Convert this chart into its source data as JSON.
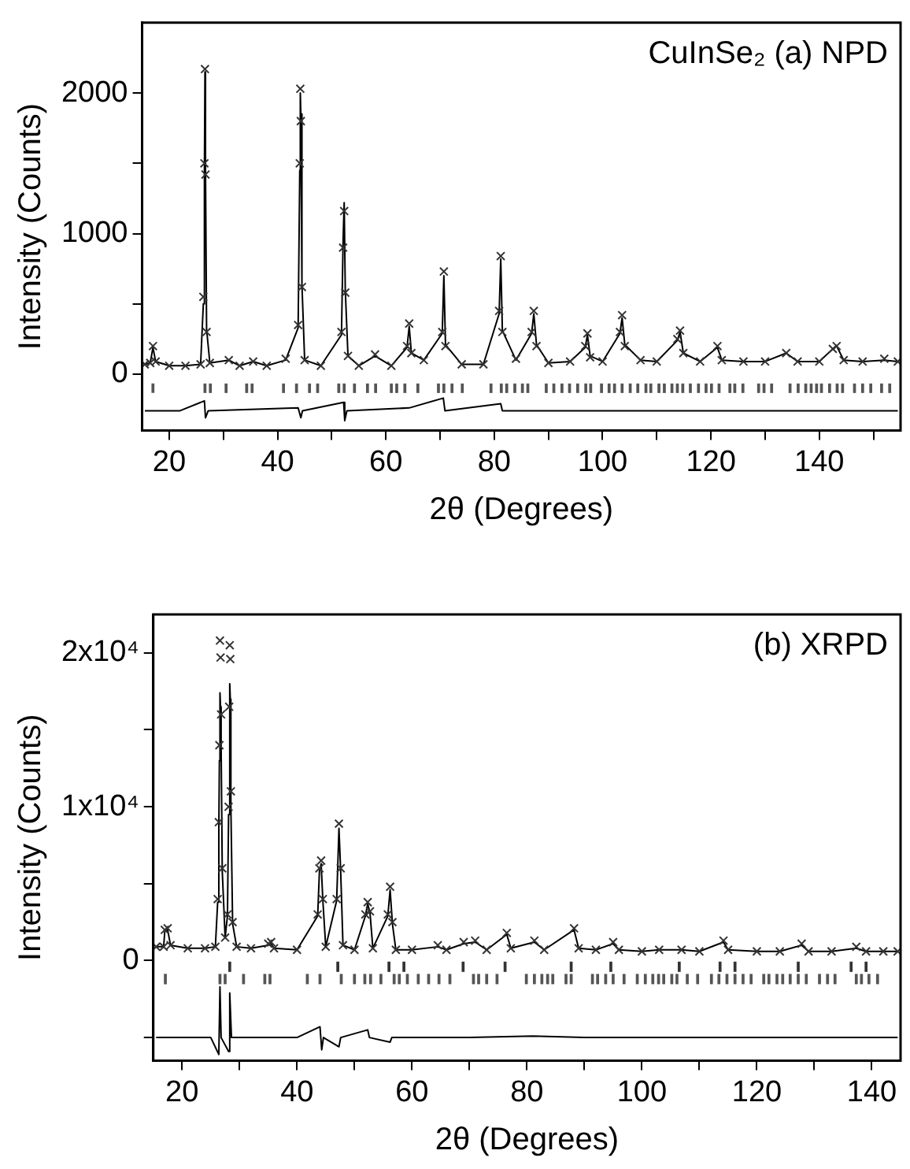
{
  "chart_data": [
    {
      "type": "line",
      "xlabel": "2θ (Degrees)",
      "ylabel": "Intensity (Counts)",
      "annotations": [
        "CuInSe₂ (a) NPD"
      ],
      "xlim": [
        15,
        155
      ],
      "ylim": [
        -400,
        2500
      ],
      "xticks": [
        20,
        {
          "value": 30,
          "label": null
        },
        40,
        {
          "value": 50,
          "label": null
        },
        60,
        {
          "value": 70,
          "label": null
        },
        80,
        {
          "value": 90,
          "label": null
        },
        100,
        {
          "value": 110,
          "label": null
        },
        120,
        {
          "value": 130,
          "label": null
        },
        140,
        {
          "value": 150,
          "label": null
        }
      ],
      "yticks": [
        0,
        {
          "value": 500,
          "label": null
        },
        1000,
        {
          "value": 1500,
          "label": null
        },
        2000
      ],
      "series": [
        {
          "type": "scatter",
          "marker": "cross",
          "color": "#333333",
          "x": [
            15.5,
            16.5,
            17,
            17.5,
            20,
            23,
            25.8,
            26.3,
            26.5,
            26.6,
            26.7,
            26.9,
            27.5,
            31,
            33,
            35.5,
            38,
            41.5,
            43.8,
            44.1,
            44.2,
            44.3,
            44.5,
            45,
            48,
            51.8,
            52.1,
            52.3,
            52.5,
            53,
            55,
            58,
            61,
            63.9,
            64.3,
            64.7,
            67,
            70.4,
            70.7,
            71,
            74,
            78,
            80.9,
            81.2,
            81.5,
            84,
            86.9,
            87.3,
            87.8,
            90,
            94,
            96.8,
            97.2,
            97.7,
            100,
            103.2,
            103.6,
            104.1,
            107,
            110,
            113.8,
            114.3,
            114.9,
            118,
            121.2,
            122,
            126,
            130,
            133.9,
            136,
            140,
            142.5,
            143.2,
            144.5,
            148,
            152,
            154.5
          ],
          "values": [
            70,
            80,
            200,
            90,
            60,
            60,
            70,
            550,
            1500,
            2170,
            1420,
            300,
            80,
            100,
            60,
            90,
            60,
            110,
            350,
            1500,
            2030,
            1800,
            620,
            100,
            60,
            300,
            900,
            1160,
            580,
            130,
            60,
            140,
            60,
            200,
            360,
            150,
            100,
            300,
            730,
            200,
            70,
            70,
            450,
            840,
            300,
            110,
            300,
            450,
            200,
            80,
            90,
            200,
            290,
            120,
            90,
            300,
            420,
            200,
            100,
            90,
            250,
            310,
            150,
            90,
            200,
            100,
            90,
            90,
            150,
            90,
            90,
            180,
            200,
            100,
            90,
            110,
            90
          ]
        },
        {
          "marker": "none",
          "color": "#000000",
          "x": [
            15.5,
            16.5,
            17,
            17.5,
            20,
            23,
            25.8,
            26.3,
            26.5,
            26.6,
            26.7,
            26.9,
            27.5,
            31,
            33,
            35.5,
            38,
            41.5,
            43.8,
            44.1,
            44.2,
            44.3,
            44.5,
            45,
            48,
            51.8,
            52.1,
            52.3,
            52.5,
            53,
            55,
            58,
            61,
            63.9,
            64.3,
            64.7,
            67,
            70.4,
            70.7,
            71,
            74,
            78,
            80.9,
            81.2,
            81.5,
            84,
            86.9,
            87.3,
            87.8,
            90,
            94,
            96.8,
            97.2,
            97.7,
            100,
            103.2,
            103.6,
            104.1,
            107,
            110,
            113.8,
            114.3,
            114.9,
            118,
            121.2,
            122,
            126,
            130,
            133.9,
            136,
            140,
            142.5,
            143.2,
            144.5,
            148,
            152,
            154.5
          ],
          "values": [
            70,
            80,
            190,
            90,
            60,
            60,
            70,
            500,
            1450,
            2150,
            1450,
            320,
            80,
            100,
            60,
            90,
            60,
            100,
            330,
            1450,
            2000,
            1850,
            640,
            100,
            60,
            280,
            950,
            1220,
            600,
            130,
            60,
            130,
            60,
            190,
            340,
            150,
            100,
            290,
            700,
            210,
            70,
            70,
            430,
            820,
            310,
            100,
            290,
            430,
            210,
            80,
            90,
            190,
            280,
            130,
            90,
            290,
            400,
            210,
            100,
            90,
            240,
            300,
            150,
            90,
            190,
            100,
            90,
            90,
            150,
            90,
            90,
            180,
            200,
            100,
            90,
            100,
            90
          ]
        },
        {
          "marker": "none",
          "color": "#000000",
          "x": [
            15.5,
            22,
            26.5,
            26.7,
            27.2,
            43.8,
            44.3,
            44.6,
            52.2,
            52.4,
            52.8,
            64.3,
            70.6,
            70.9,
            81.2,
            81.5,
            100,
            120,
            140,
            154.5
          ],
          "values": [
            -260,
            -260,
            -190,
            -310,
            -260,
            -240,
            -310,
            -260,
            -200,
            -330,
            -260,
            -240,
            -170,
            -260,
            -210,
            -260,
            -260,
            -260,
            -260,
            -260
          ]
        },
        {
          "type": "bar",
          "color": "#555555",
          "x": [
            17.0,
            26.6,
            27.6,
            30.5,
            34.3,
            35.3,
            41.1,
            43.5,
            45.9,
            47.4,
            51.3,
            52.3,
            54.2,
            56.6,
            58.1,
            61.0,
            62.0,
            63.5,
            65.9,
            69.7,
            70.7,
            72.2,
            74.1,
            79.4,
            81.3,
            82.3,
            83.8,
            85.2,
            86.2,
            89.6,
            91.0,
            92.5,
            93.9,
            95.4,
            96.9,
            97.8,
            99.8,
            101.2,
            102.2,
            103.6,
            105.1,
            106.5,
            108.0,
            108.9,
            110.4,
            111.4,
            112.8,
            113.8,
            114.8,
            116.2,
            117.7,
            119.1,
            120.1,
            121.5,
            123.5,
            124.4,
            125.9,
            128.8,
            129.8,
            131.2,
            134.6,
            136.1,
            137.5,
            138.5,
            139.5,
            140.4,
            141.9,
            143.3,
            144.3,
            146.5,
            148,
            149.5,
            151.5,
            153
          ],
          "values": [
            60,
            60,
            60,
            60,
            60,
            60,
            60,
            60,
            60,
            60,
            60,
            60,
            60,
            60,
            60,
            60,
            60,
            60,
            60,
            60,
            60,
            60,
            60,
            60,
            60,
            60,
            60,
            60,
            60,
            60,
            60,
            60,
            60,
            60,
            60,
            60,
            60,
            60,
            60,
            60,
            60,
            60,
            60,
            60,
            60,
            60,
            60,
            60,
            60,
            60,
            60,
            60,
            60,
            60,
            60,
            60,
            60,
            60,
            60,
            60,
            60,
            60,
            60,
            60,
            60,
            60,
            60,
            60,
            60,
            60,
            60,
            60,
            60,
            60
          ],
          "base": [
            -130,
            -130,
            -130,
            -130,
            -130,
            -130,
            -130,
            -130,
            -130,
            -130,
            -130,
            -130,
            -130,
            -130,
            -130,
            -130,
            -130,
            -130,
            -130,
            -130,
            -130,
            -130,
            -130,
            -130,
            -130,
            -130,
            -130,
            -130,
            -130,
            -130,
            -130,
            -130,
            -130,
            -130,
            -130,
            -130,
            -130,
            -130,
            -130,
            -130,
            -130,
            -130,
            -130,
            -130,
            -130,
            -130,
            -130,
            -130,
            -130,
            -130,
            -130,
            -130,
            -130,
            -130,
            -130,
            -130,
            -130,
            -130,
            -130,
            -130,
            -130,
            -130,
            -130,
            -130,
            -130,
            -130,
            -130,
            -130,
            -130,
            -130,
            -130,
            -130,
            -130,
            -130
          ]
        }
      ]
    },
    {
      "type": "line",
      "xlabel": "2θ (Degrees)",
      "ylabel": "Intensity (Counts)",
      "annotations": [
        "(b) XRPD"
      ],
      "xlim": [
        15,
        145
      ],
      "ylim": [
        -6500,
        22500
      ],
      "xticks": [
        20,
        {
          "value": 30,
          "label": null
        },
        40,
        {
          "value": 50,
          "label": null
        },
        60,
        {
          "value": 70,
          "label": null
        },
        80,
        {
          "value": 90,
          "label": null
        },
        100,
        {
          "value": 110,
          "label": null
        },
        120,
        {
          "value": 130,
          "label": null
        },
        140
      ],
      "yticks": [
        {
          "value": -5000,
          "label": null
        },
        {
          "value": 0,
          "label": "0"
        },
        {
          "value": 5000,
          "label": null
        },
        {
          "value": 10000,
          "label": "1x10⁴"
        },
        {
          "value": 15000,
          "label": null
        },
        {
          "value": 20000,
          "label": "2x10⁴"
        }
      ],
      "series": [
        {
          "type": "scatter",
          "marker": "cross",
          "color": "#333333",
          "x": [
            15.5,
            16.8,
            17.0,
            17.5,
            18,
            21,
            24,
            25.8,
            26.2,
            26.4,
            26.5,
            26.6,
            26.7,
            26.8,
            27,
            27.5,
            27.9,
            28.1,
            28.2,
            28.3,
            28.4,
            28.5,
            28.8,
            29.5,
            32,
            35.0,
            35.5,
            36,
            40,
            43.6,
            43.9,
            44.2,
            44.5,
            45,
            46.9,
            47.3,
            47.6,
            48,
            50,
            51.9,
            52.3,
            52.7,
            53.2,
            55.8,
            56.2,
            56.6,
            57.2,
            60,
            64.5,
            66,
            69,
            71,
            73,
            76.5,
            77.2,
            81.3,
            83,
            88.2,
            89,
            92,
            95,
            96,
            100,
            103,
            106.9,
            110,
            114.2,
            115,
            120,
            124,
            127.8,
            129,
            133,
            137.3,
            139,
            142,
            144.5
          ],
          "values": [
            900,
            900,
            2000,
            2100,
            1000,
            800,
            800,
            900,
            4000,
            9000,
            14000,
            20800,
            19700,
            16000,
            6000,
            1500,
            3000,
            10000,
            16500,
            20500,
            19600,
            11000,
            2500,
            900,
            800,
            1100,
            1200,
            800,
            700,
            3000,
            6000,
            6500,
            4000,
            900,
            4000,
            8900,
            6000,
            1000,
            700,
            3000,
            3800,
            3200,
            800,
            3000,
            4800,
            2500,
            700,
            700,
            1000,
            700,
            1200,
            1300,
            700,
            1800,
            800,
            1300,
            700,
            2100,
            800,
            700,
            1200,
            700,
            600,
            700,
            700,
            600,
            1300,
            700,
            600,
            600,
            1100,
            600,
            600,
            900,
            600,
            600,
            600
          ]
        },
        {
          "marker": "none",
          "color": "#000000",
          "x": [
            15.5,
            16.8,
            17.0,
            17.5,
            18,
            21,
            24,
            25.8,
            26.2,
            26.4,
            26.5,
            26.6,
            26.7,
            26.8,
            27,
            27.5,
            27.9,
            28.1,
            28.3,
            28.4,
            28.5,
            28.8,
            29.5,
            32,
            35.0,
            35.5,
            36,
            40,
            43.6,
            43.9,
            44.2,
            44.5,
            45,
            46.9,
            47.3,
            47.6,
            48,
            50,
            51.9,
            52.3,
            52.7,
            53.2,
            55.8,
            56.2,
            56.6,
            57.2,
            60,
            64.5,
            66,
            69,
            71,
            73,
            76.5,
            77.2,
            81.3,
            83,
            88.2,
            89,
            92,
            95,
            96,
            100,
            103,
            106.9,
            110,
            114.2,
            115,
            120,
            124,
            127.8,
            129,
            133,
            137.3,
            139,
            142,
            144.5
          ],
          "values": [
            900,
            900,
            1900,
            2000,
            1000,
            800,
            800,
            900,
            3800,
            8500,
            13000,
            17400,
            16500,
            14000,
            5800,
            1500,
            2900,
            9500,
            18000,
            17000,
            10000,
            2400,
            900,
            800,
            1000,
            1100,
            800,
            700,
            2900,
            5800,
            6300,
            3900,
            900,
            3900,
            8600,
            5800,
            1000,
            700,
            2900,
            3700,
            3100,
            800,
            2900,
            4600,
            2400,
            700,
            700,
            900,
            700,
            1100,
            1200,
            700,
            1700,
            800,
            1200,
            700,
            2000,
            800,
            700,
            1100,
            700,
            600,
            700,
            700,
            600,
            1200,
            700,
            600,
            600,
            1000,
            600,
            600,
            800,
            600,
            600,
            600
          ]
        },
        {
          "marker": "none",
          "color": "#000000",
          "x": [
            15.5,
            25,
            26.4,
            26.6,
            26.8,
            28.1,
            28.3,
            28.6,
            40,
            44.0,
            44.3,
            44.6,
            47.3,
            47.6,
            52.3,
            52.6,
            56.2,
            56.5,
            70,
            81,
            90,
            110,
            130,
            144.5
          ],
          "values": [
            -5000,
            -5000,
            -6100,
            -1700,
            -5000,
            -5900,
            -2100,
            -5000,
            -5000,
            -4300,
            -5800,
            -5000,
            -5600,
            -5000,
            -4500,
            -5000,
            -5300,
            -5000,
            -5000,
            -4900,
            -5000,
            -5000,
            -5000,
            -5000
          ]
        },
        {
          "type": "bar",
          "color": "#333333",
          "x": [
            28.3,
            47.1,
            56.0,
            58.6,
            68.9,
            76.2,
            87.7,
            94.6,
            106.5,
            113.6,
            116.2,
            127.2,
            136.4,
            139
          ],
          "values": [
            600,
            600,
            600,
            600,
            600,
            600,
            600,
            600,
            600,
            600,
            600,
            600,
            600,
            600
          ],
          "base": [
            -700,
            -700,
            -700,
            -700,
            -700,
            -700,
            -700,
            -700,
            -700,
            -700,
            -700,
            -700,
            -700,
            -700
          ]
        },
        {
          "type": "bar",
          "color": "#555555",
          "x": [
            17.1,
            26.6,
            27.5,
            30.7,
            34.4,
            35.3,
            41.8,
            44.0,
            47.7,
            50.0,
            51.8,
            52.8,
            54.6,
            56.9,
            57.8,
            59.2,
            61.1,
            62.9,
            64.7,
            66.6,
            70.7,
            71.6,
            73.0,
            74.8,
            79.9,
            81.3,
            82.6,
            83.6,
            84.5,
            86.8,
            87.7,
            91.4,
            92.3,
            93.7,
            95.0,
            96.9,
            99.2,
            100.6,
            101.9,
            102.9,
            103.8,
            105.2,
            106.1,
            107.9,
            109.7,
            112.1,
            113.4,
            114.8,
            116.2,
            117.6,
            119.0,
            121.2,
            122.1,
            123.5,
            124.5,
            125.8,
            127.2,
            128.6,
            130.9,
            132.3,
            133.6,
            137.3,
            138.2,
            139.5,
            141
          ],
          "values": [
            600,
            600,
            600,
            600,
            600,
            600,
            600,
            600,
            600,
            600,
            600,
            600,
            600,
            600,
            600,
            600,
            600,
            600,
            600,
            600,
            600,
            600,
            600,
            600,
            600,
            600,
            600,
            600,
            600,
            600,
            600,
            600,
            600,
            600,
            600,
            600,
            600,
            600,
            600,
            600,
            600,
            600,
            600,
            600,
            600,
            600,
            600,
            600,
            600,
            600,
            600,
            600,
            600,
            600,
            600,
            600,
            600,
            600,
            600,
            600,
            600,
            600,
            600,
            600,
            600
          ],
          "base": [
            -1500,
            -1500,
            -1500,
            -1500,
            -1500,
            -1500,
            -1500,
            -1500,
            -1500,
            -1500,
            -1500,
            -1500,
            -1500,
            -1500,
            -1500,
            -1500,
            -1500,
            -1500,
            -1500,
            -1500,
            -1500,
            -1500,
            -1500,
            -1500,
            -1500,
            -1500,
            -1500,
            -1500,
            -1500,
            -1500,
            -1500,
            -1500,
            -1500,
            -1500,
            -1500,
            -1500,
            -1500,
            -1500,
            -1500,
            -1500,
            -1500,
            -1500,
            -1500,
            -1500,
            -1500,
            -1500,
            -1500,
            -1500,
            -1500,
            -1500,
            -1500,
            -1500,
            -1500,
            -1500,
            -1500,
            -1500,
            -1500,
            -1500,
            -1500,
            -1500,
            -1500,
            -1500,
            -1500,
            -1500,
            -1500
          ]
        }
      ]
    }
  ]
}
